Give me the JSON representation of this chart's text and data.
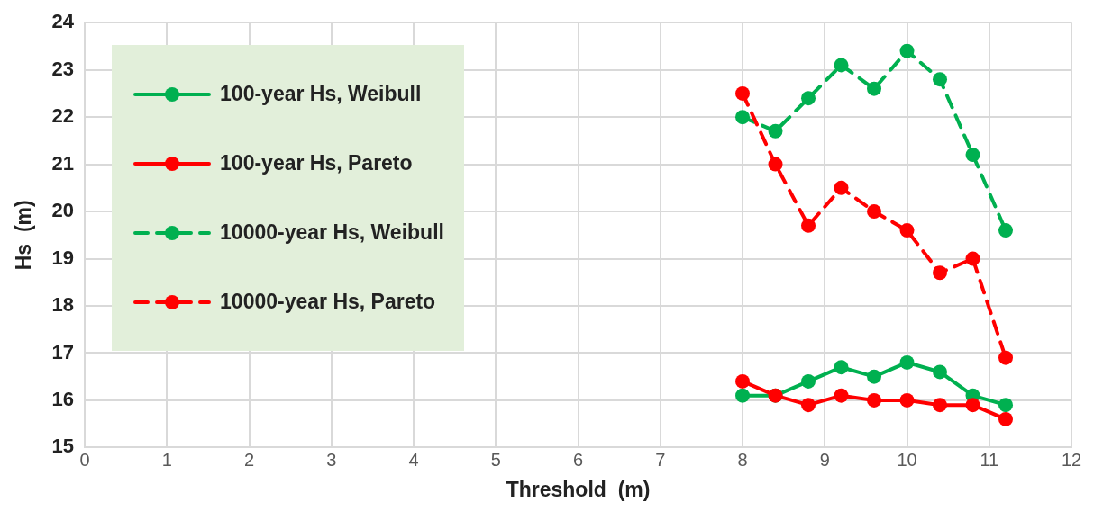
{
  "chart_data": {
    "type": "line",
    "xlabel": "Threshold  (m)",
    "ylabel": "Hs  (m)",
    "x": [
      8,
      8.4,
      8.8,
      9.2,
      9.6,
      10,
      10.4,
      10.8,
      11.2
    ],
    "series": [
      {
        "name": "100-year Hs, Weibull",
        "color": "#00b050",
        "line_style": "solid",
        "values": [
          16.1,
          16.1,
          16.4,
          16.7,
          16.5,
          16.8,
          16.6,
          16.1,
          15.9
        ]
      },
      {
        "name": "100-year Hs, Pareto",
        "color": "#ff0000",
        "line_style": "solid",
        "values": [
          16.4,
          16.1,
          15.9,
          16.1,
          16.0,
          16.0,
          15.9,
          15.9,
          15.6
        ]
      },
      {
        "name": "10000-year Hs, Weibull",
        "color": "#00b050",
        "line_style": "dashed",
        "values": [
          22.0,
          21.7,
          22.4,
          23.1,
          22.6,
          23.4,
          22.8,
          21.2,
          19.6
        ]
      },
      {
        "name": "10000-year Hs, Pareto",
        "color": "#ff0000",
        "line_style": "dashed",
        "values": [
          22.5,
          21.0,
          19.7,
          20.5,
          20.0,
          19.6,
          18.7,
          19.0,
          16.9
        ]
      }
    ],
    "xlim": [
      0,
      12
    ],
    "xticks": [
      0,
      1,
      2,
      3,
      4,
      5,
      6,
      7,
      8,
      9,
      10,
      11,
      12
    ],
    "ylim": [
      15,
      24
    ],
    "yticks": [
      15,
      16,
      17,
      18,
      19,
      20,
      21,
      22,
      23,
      24
    ],
    "grid": true,
    "legend": "top left",
    "marker": "circle"
  }
}
